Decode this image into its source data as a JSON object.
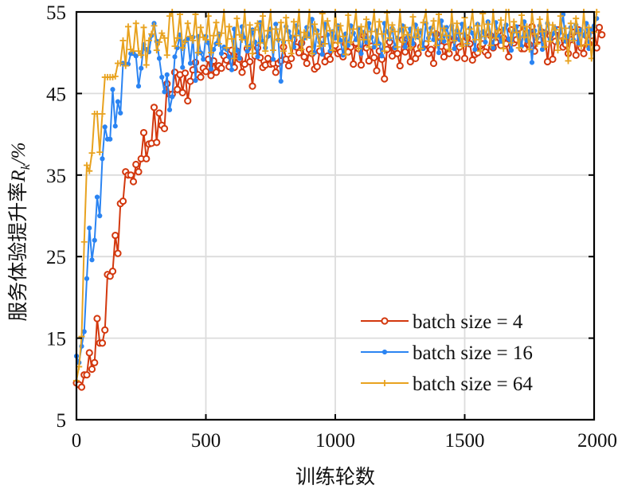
{
  "chart_data": {
    "type": "line",
    "title": "",
    "xlabel": "训练轮数",
    "ylabel_prefix": "服务体验提升率",
    "ylabel_symbol": "R",
    "ylabel_subscript": "k",
    "ylabel_unit": "/%",
    "xlim": [
      0,
      2000
    ],
    "ylim": [
      5,
      55
    ],
    "xticks": [
      0,
      500,
      1000,
      1500,
      2000
    ],
    "xtick_labels": [
      "0",
      "500",
      "1000",
      "1500",
      "2000"
    ],
    "yticks": [
      5,
      15,
      25,
      35,
      45,
      55
    ],
    "ytick_labels": [
      "5",
      "15",
      "25",
      "35",
      "45",
      "55"
    ],
    "grid": true,
    "legend_position": "bottom-right",
    "x_step": 10,
    "series": [
      {
        "name": "batch size = 4",
        "color": "#D3380E",
        "marker": "circle",
        "values": [
          9.5,
          9.3,
          9.0,
          10.5,
          10.5,
          13.2,
          11.2,
          12.0,
          17.4,
          14.4,
          14.4,
          16.0,
          22.8,
          22.6,
          23.2,
          27.6,
          25.4,
          31.5,
          31.8,
          35.4,
          35.0,
          35.0,
          34.2,
          36.3,
          35.4,
          37.0,
          40.2,
          37.0,
          38.8,
          38.9,
          43.3,
          39.0,
          42.6,
          41.1,
          40.7,
          46.2,
          44.9,
          44.9,
          47.6,
          45.5,
          47.3,
          45.1,
          47.5,
          44.1,
          46.5,
          47.9,
          48.8,
          47.3,
          47.0,
          48.1,
          47.7,
          49.2,
          47.2,
          49.0,
          47.6,
          48.4,
          48.1,
          49.6,
          49.1,
          48.3,
          50.3,
          48.2,
          50.2,
          49.2,
          47.6,
          48.6,
          50.5,
          48.9,
          45.9,
          49.6,
          50.6,
          49.4,
          48.2,
          48.5,
          49.3,
          48.6,
          48.7,
          47.6,
          48.7,
          49.0,
          50.7,
          49.2,
          48.4,
          49.3,
          51.6,
          50.7,
          50.0,
          51.2,
          49.5,
          48.7,
          50.4,
          49.9,
          48.0,
          48.3,
          50.2,
          51.6,
          48.9,
          49.6,
          49.2,
          50.5,
          50.9,
          49.9,
          50.1,
          49.5,
          51.1,
          50.1,
          50.7,
          48.6,
          51.2,
          50.5,
          48.5,
          52.1,
          50.6,
          49.0,
          50.8,
          49.4,
          47.8,
          50.2,
          49.2,
          46.8,
          50.4,
          51.3,
          49.6,
          50.5,
          49.9,
          48.4,
          51.6,
          50.1,
          51.7,
          48.9,
          51.0,
          49.3,
          49.9,
          50.7,
          50.8,
          51.1,
          49.9,
          50.4,
          48.7,
          52.3,
          51.2,
          50.8,
          49.5,
          50.7,
          49.9,
          51.6,
          51.7,
          49.4,
          50.7,
          52.0,
          49.3,
          51.8,
          51.1,
          49.1,
          49.8,
          50.0,
          50.8,
          51.1,
          50.1,
          49.7,
          52.1,
          50.6,
          51.3,
          52.6,
          50.9,
          51.8,
          51.1,
          49.5,
          52.8,
          51.2,
          51.6,
          53.0,
          50.5,
          50.5,
          52.4,
          51.0,
          53.2,
          50.2,
          51.4,
          51.6,
          52.5,
          52.4,
          48.9,
          52.1,
          49.2,
          51.4,
          52.8,
          52.1,
          50.7,
          51.0,
          49.9,
          51.6,
          52.5,
          49.7,
          52.8,
          50.6,
          49.9,
          52.1,
          51.1,
          52.1,
          52.9,
          50.6,
          53.1,
          52.2
        ]
      },
      {
        "name": "batch size = 16",
        "color": "#2B84F2",
        "marker": "dot",
        "values": [
          12.8,
          12.0,
          14.0,
          15.8,
          22.3,
          28.5,
          24.6,
          27.0,
          32.3,
          30.0,
          37.0,
          40.9,
          39.4,
          39.4,
          45.5,
          41.0,
          44.0,
          42.6,
          48.7,
          48.6,
          48.6,
          49.9,
          49.9,
          49.6,
          45.9,
          48.1,
          51.0,
          50.4,
          50.1,
          52.1,
          53.6,
          51.4,
          49.3,
          47.0,
          45.2,
          47.3,
          43.0,
          44.6,
          49.5,
          50.6,
          52.2,
          48.2,
          51.4,
          51.7,
          48.7,
          51.9,
          46.6,
          52.0,
          50.0,
          49.2,
          52.0,
          51.2,
          48.0,
          50.4,
          51.1,
          52.3,
          49.9,
          50.7,
          50.4,
          49.5,
          47.9,
          52.9,
          50.3,
          49.3,
          53.2,
          51.8,
          50.2,
          50.8,
          52.8,
          51.3,
          49.5,
          53.7,
          51.4,
          50.6,
          52.0,
          52.9,
          49.2,
          53.5,
          51.6,
          46.5,
          51.3,
          53.2,
          52.6,
          51.9,
          50.7,
          53.3,
          52.5,
          51.1,
          51.8,
          53.1,
          52.0,
          54.1,
          50.0,
          52.7,
          51.3,
          49.8,
          53.5,
          52.2,
          50.2,
          52.6,
          51.8,
          53.3,
          51.5,
          49.7,
          52.3,
          50.9,
          53.3,
          52.4,
          51.6,
          53.0,
          49.9,
          52.5,
          51.3,
          53.6,
          51.9,
          50.7,
          52.7,
          51.1,
          49.6,
          53.6,
          52.6,
          51.7,
          53.0,
          50.6,
          51.8,
          52.8,
          53.3,
          50.7,
          51.9,
          52.9,
          51.1,
          53.4,
          51.9,
          52.7,
          50.5,
          53.6,
          51.8,
          53.0,
          51.6,
          52.3,
          50.0,
          53.9,
          51.4,
          53.1,
          52.0,
          53.3,
          50.5,
          52.7,
          51.6,
          53.5,
          52.2,
          51.1,
          53.0,
          52.4,
          50.4,
          53.5,
          51.9,
          52.6,
          51.3,
          53.8,
          52.2,
          50.6,
          53.7,
          52.1,
          51.4,
          52.9,
          53.4,
          51.7,
          50.3,
          52.6,
          53.2,
          52.0,
          50.8,
          53.8,
          51.5,
          52.6,
          48.8,
          52.7,
          51.8,
          53.3,
          50.4,
          52.5,
          53.6,
          51.7,
          52.3,
          53.0,
          51.2,
          52.5,
          54.7,
          51.4,
          52.0,
          53.1,
          51.6,
          53.4,
          51.2,
          52.8,
          52.1,
          53.6,
          50.5,
          52.9,
          53.3,
          54.2
        ]
      },
      {
        "name": "batch size = 64",
        "color": "#E8A21F",
        "marker": "plus",
        "values": [
          9.8,
          11.5,
          15.2,
          26.8,
          36.2,
          35.5,
          37.7,
          42.5,
          42.5,
          37.8,
          42.5,
          47.0,
          47.0,
          47.0,
          47.0,
          47.1,
          48.7,
          48.7,
          51.5,
          48.4,
          53.2,
          50.4,
          50.2,
          53.6,
          50.2,
          49.7,
          53.1,
          48.5,
          51.5,
          52.3,
          53.3,
          50.3,
          51.3,
          52.4,
          51.8,
          49.7,
          54.5,
          55.0,
          50.8,
          51.8,
          54.7,
          50.6,
          51.4,
          53.6,
          52.0,
          51.5,
          54.7,
          50.0,
          53.1,
          51.9,
          51.6,
          54.5,
          50.0,
          52.1,
          53.7,
          51.1,
          52.4,
          55.0,
          50.6,
          53.2,
          51.7,
          49.3,
          54.2,
          52.2,
          51.6,
          55.0,
          50.8,
          53.4,
          49.9,
          52.8,
          53.6,
          51.2,
          54.5,
          50.2,
          52.7,
          55.0,
          50.3,
          52.9,
          51.6,
          53.7,
          50.2,
          54.3,
          51.5,
          49.9,
          53.8,
          52.1,
          55.0,
          50.4,
          52.5,
          51.9,
          55.0,
          49.9,
          53.5,
          52.3,
          50.8,
          54.8,
          51.1,
          53.9,
          52.7,
          50.3,
          55.0,
          51.2,
          53.3,
          52.0,
          49.8,
          54.6,
          51.3,
          52.9,
          55.0,
          50.5,
          53.2,
          51.6,
          54.1,
          50.7,
          52.6,
          55.0,
          51.0,
          53.8,
          52.3,
          50.2,
          54.9,
          51.8,
          53.4,
          52.6,
          50.7,
          55.0,
          51.3,
          53.1,
          52.2,
          50.6,
          54.4,
          51.9,
          52.8,
          50.5,
          53.7,
          55.0,
          51.4,
          52.5,
          53.9,
          50.9,
          54.7,
          51.7,
          53.0,
          52.1,
          50.4,
          55.0,
          51.5,
          53.6,
          52.4,
          50.8,
          54.3,
          51.1,
          52.9,
          55.0,
          51.6,
          53.3,
          50.2,
          54.8,
          52.0,
          53.5,
          50.9,
          55.0,
          51.8,
          52.7,
          54.0,
          50.5,
          55.0,
          55.0,
          51.2,
          53.8,
          52.5,
          50.6,
          54.6,
          51.9,
          53.2,
          50.4,
          55.0,
          52.3,
          51.1,
          54.1,
          52.6,
          50.7,
          55.0,
          51.4,
          53.4,
          52.8,
          50.3,
          54.5,
          51.7,
          53.0,
          49.0,
          53.6,
          51.5,
          54.2,
          52.4,
          50.8,
          55.0,
          51.0,
          53.1,
          49.3,
          52.5,
          55.0
        ]
      }
    ]
  }
}
